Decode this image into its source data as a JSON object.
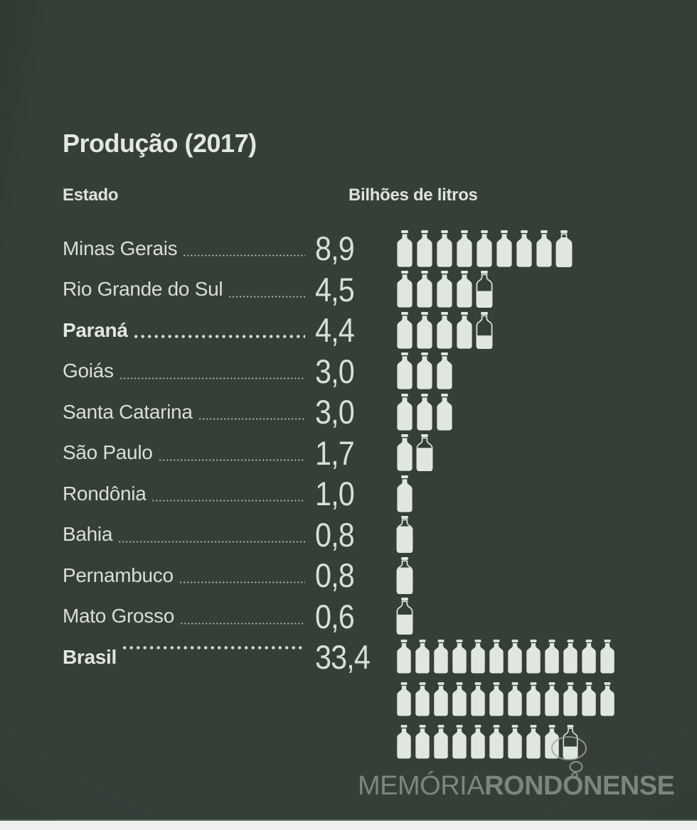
{
  "title": "Produção (2017)",
  "columns": {
    "state": "Estado",
    "unit": "Bilhões de litros"
  },
  "chart_data": {
    "type": "bar",
    "variant": "pictogram",
    "title": "Produção (2017)",
    "unit_label": "Bilhões de litros",
    "icon": "milk-bottle",
    "icon_unit_value": 1,
    "categories": [
      "Minas Gerais",
      "Rio Grande do Sul",
      "Paraná",
      "Goiás",
      "Santa Catarina",
      "São Paulo",
      "Rondônia",
      "Bahia",
      "Pernambuco",
      "Mato Grosso",
      "Brasil"
    ],
    "values": [
      8.9,
      4.5,
      4.4,
      3.0,
      3.0,
      1.7,
      1.0,
      0.8,
      0.8,
      0.6,
      33.4
    ],
    "rows": [
      {
        "state": "Minas Gerais",
        "value_label": "8,9",
        "value": 8.9,
        "bold": false,
        "total": false
      },
      {
        "state": "Rio Grande do Sul",
        "value_label": "4,5",
        "value": 4.5,
        "bold": false,
        "total": false
      },
      {
        "state": "Paraná",
        "value_label": "4,4",
        "value": 4.4,
        "bold": true,
        "total": false
      },
      {
        "state": "Goiás",
        "value_label": "3,0",
        "value": 3.0,
        "bold": false,
        "total": false
      },
      {
        "state": "Santa Catarina",
        "value_label": "3,0",
        "value": 3.0,
        "bold": false,
        "total": false
      },
      {
        "state": "São Paulo",
        "value_label": "1,7",
        "value": 1.7,
        "bold": false,
        "total": false
      },
      {
        "state": "Rondônia",
        "value_label": "1,0",
        "value": 1.0,
        "bold": false,
        "total": false
      },
      {
        "state": "Bahia",
        "value_label": "0,8",
        "value": 0.8,
        "bold": false,
        "total": false
      },
      {
        "state": "Pernambuco",
        "value_label": "0,8",
        "value": 0.8,
        "bold": false,
        "total": false
      },
      {
        "state": "Mato Grosso",
        "value_label": "0,6",
        "value": 0.6,
        "bold": false,
        "total": false
      },
      {
        "state": "Brasil",
        "value_label": "33,4",
        "value": 33.4,
        "bold": true,
        "total": true
      }
    ],
    "legend_position": "none",
    "grid": false
  },
  "icons": {
    "bottle_full": "milk-bottle-icon",
    "bottle_partial": "milk-bottle-partial-icon",
    "bubble": "thought-bubble-icon"
  },
  "colors": {
    "background": "#343f38",
    "ink": "#dbe0da",
    "bottle": "#e1e6e0",
    "watermark_light": "#a8b1aa",
    "watermark_bold": "#7c8780",
    "scan_strip": "#eef0ed"
  },
  "watermark": {
    "light": "MEMÓRIA",
    "bold": "RONDONENSE"
  }
}
